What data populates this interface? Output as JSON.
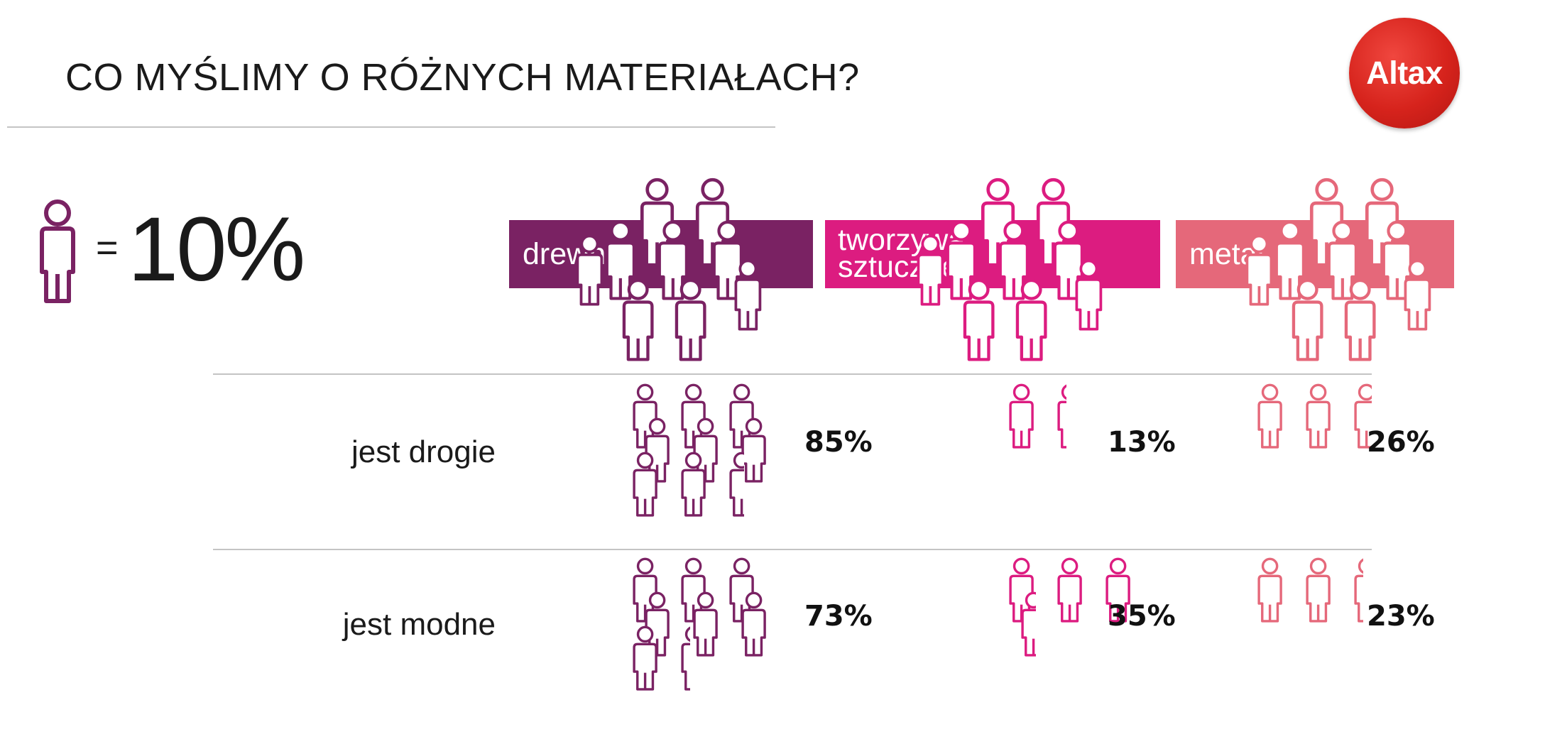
{
  "title": "CO MYŚLIMY O RÓŻNYCH MATERIAŁACH?",
  "logo_text": "Altax",
  "legend": {
    "equals": "=",
    "unit_value": "10%",
    "unit_percent": 10
  },
  "colors": {
    "drewno": "#7a2263",
    "tworzywa": "#dc1c80",
    "metal": "#e5687a"
  },
  "chart_data": {
    "type": "pictogram",
    "categories": [
      "jest drogie",
      "jest modne"
    ],
    "series": [
      {
        "name": "drewno",
        "label_lines": [
          "drewno"
        ],
        "color": "#7a2263",
        "values": [
          85,
          73
        ]
      },
      {
        "name": "tworzywa sztuczne",
        "label_lines": [
          "tworzywa",
          "sztuczne"
        ],
        "color": "#dc1c80",
        "values": [
          13,
          35
        ]
      },
      {
        "name": "metal",
        "label_lines": [
          "metal"
        ],
        "color": "#e5687a",
        "values": [
          26,
          23
        ]
      }
    ],
    "value_labels": [
      [
        "85%",
        "73%"
      ],
      [
        "13%",
        "35%"
      ],
      [
        "26%",
        "23%"
      ]
    ],
    "unit": "%"
  }
}
